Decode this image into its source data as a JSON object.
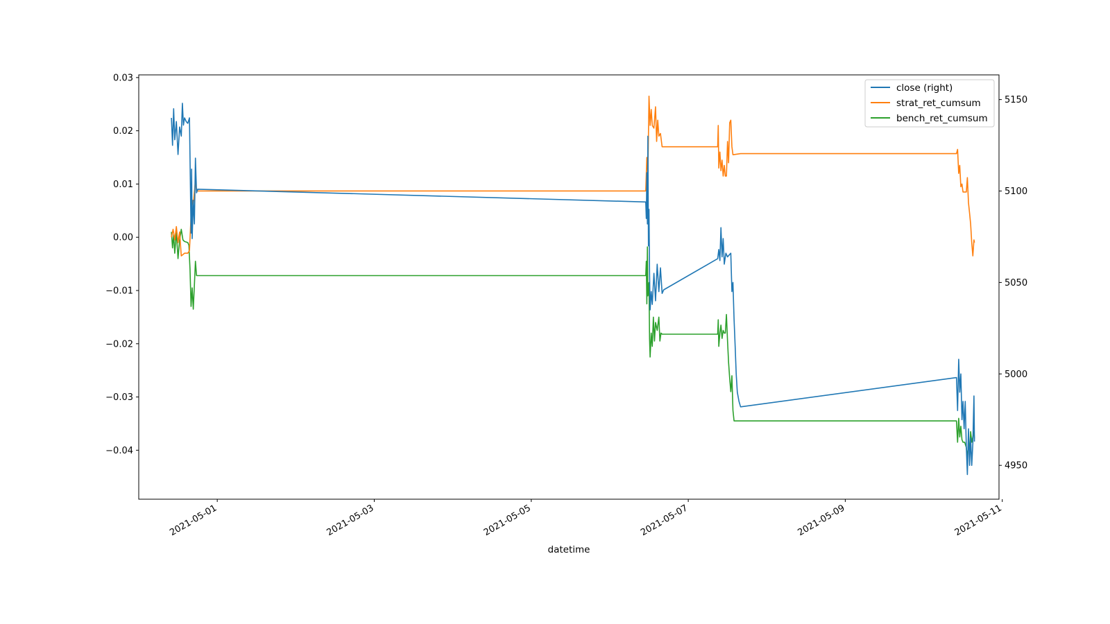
{
  "chart_data": {
    "type": "line",
    "xlabel": "datetime",
    "x_ticks": [
      "2021-05-01",
      "2021-05-03",
      "2021-05-05",
      "2021-05-07",
      "2021-05-09",
      "2021-05-11"
    ],
    "x_range": [
      "2021-04-30T00:00",
      "2021-05-10T23:00"
    ],
    "y_left": {
      "ticks": [
        "0.03",
        "0.02",
        "0.01",
        "0.00",
        "−0.01",
        "−0.02",
        "−0.03",
        "−0.04"
      ],
      "range": [
        -0.0492,
        0.0305
      ]
    },
    "y_right": {
      "ticks": [
        "5150",
        "5100",
        "5050",
        "5000",
        "4950"
      ],
      "range": [
        4931.5,
        5163.5
      ]
    },
    "grid": false,
    "legend_position": "top-right",
    "series": [
      {
        "name": "close (right)",
        "axis": "right",
        "color": "#1f77b4",
        "points": [
          [
            "2021-04-30T10:00",
            5140
          ],
          [
            "2021-04-30T10:20",
            5125
          ],
          [
            "2021-04-30T10:40",
            5145
          ],
          [
            "2021-04-30T11:00",
            5128
          ],
          [
            "2021-04-30T11:30",
            5138
          ],
          [
            "2021-04-30T12:00",
            5120
          ],
          [
            "2021-04-30T12:30",
            5135
          ],
          [
            "2021-04-30T13:00",
            5130
          ],
          [
            "2021-04-30T13:20",
            5148
          ],
          [
            "2021-04-30T13:40",
            5136
          ],
          [
            "2021-04-30T14:00",
            5140
          ],
          [
            "2021-04-30T14:30",
            5138
          ],
          [
            "2021-04-30T15:00",
            5137
          ],
          [
            "2021-04-30T15:30",
            5140
          ],
          [
            "2021-04-30T16:00",
            5077
          ],
          [
            "2021-04-30T16:10",
            5112
          ],
          [
            "2021-04-30T16:20",
            5074
          ],
          [
            "2021-04-30T16:40",
            5095
          ],
          [
            "2021-04-30T17:00",
            5082
          ],
          [
            "2021-04-30T17:20",
            5118
          ],
          [
            "2021-04-30T17:40",
            5099
          ],
          [
            "2021-04-30T18:00",
            5101
          ],
          [
            "2021-05-06T11:00",
            5094
          ],
          [
            "2021-05-06T11:10",
            5085
          ],
          [
            "2021-05-06T11:20",
            5110
          ],
          [
            "2021-05-06T11:30",
            5082
          ],
          [
            "2021-05-06T11:40",
            5130
          ],
          [
            "2021-05-06T11:50",
            5070
          ],
          [
            "2021-05-06T12:00",
            5090
          ],
          [
            "2021-05-06T12:10",
            5055
          ],
          [
            "2021-05-06T12:20",
            5035
          ],
          [
            "2021-05-06T12:40",
            5045
          ],
          [
            "2021-05-06T13:00",
            5038
          ],
          [
            "2021-05-06T13:30",
            5055
          ],
          [
            "2021-05-06T14:00",
            5040
          ],
          [
            "2021-05-06T14:30",
            5060
          ],
          [
            "2021-05-06T15:00",
            5045
          ],
          [
            "2021-05-06T15:30",
            5058
          ],
          [
            "2021-05-06T16:00",
            5044
          ],
          [
            "2021-05-06T16:30",
            5046
          ],
          [
            "2021-05-07T09:00",
            5063
          ],
          [
            "2021-05-07T09:20",
            5068
          ],
          [
            "2021-05-07T09:40",
            5062
          ],
          [
            "2021-05-07T10:00",
            5080
          ],
          [
            "2021-05-07T10:20",
            5064
          ],
          [
            "2021-05-07T10:40",
            5074
          ],
          [
            "2021-05-07T11:00",
            5060
          ],
          [
            "2021-05-07T11:30",
            5066
          ],
          [
            "2021-05-07T12:00",
            5064
          ],
          [
            "2021-05-07T12:30",
            5065
          ],
          [
            "2021-05-07T13:00",
            5066
          ],
          [
            "2021-05-07T13:20",
            5045
          ],
          [
            "2021-05-07T13:40",
            5050
          ],
          [
            "2021-05-07T14:00",
            5030
          ],
          [
            "2021-05-07T14:20",
            5015
          ],
          [
            "2021-05-07T14:40",
            5000
          ],
          [
            "2021-05-07T15:00",
            4990
          ],
          [
            "2021-05-07T15:30",
            4985
          ],
          [
            "2021-05-07T16:00",
            4982
          ],
          [
            "2021-05-10T10:00",
            4998
          ],
          [
            "2021-05-10T10:20",
            4980
          ],
          [
            "2021-05-10T10:40",
            5008
          ],
          [
            "2021-05-10T11:00",
            4990
          ],
          [
            "2021-05-10T11:20",
            5000
          ],
          [
            "2021-05-10T11:40",
            4975
          ],
          [
            "2021-05-10T12:00",
            4985
          ],
          [
            "2021-05-10T12:20",
            4970
          ],
          [
            "2021-05-10T12:40",
            4985
          ],
          [
            "2021-05-10T13:00",
            4960
          ],
          [
            "2021-05-10T13:20",
            4945
          ],
          [
            "2021-05-10T13:40",
            4970
          ],
          [
            "2021-05-10T14:00",
            4950
          ],
          [
            "2021-05-10T14:20",
            4965
          ],
          [
            "2021-05-10T14:40",
            4950
          ],
          [
            "2021-05-10T15:00",
            4962
          ],
          [
            "2021-05-10T15:20",
            4988
          ],
          [
            "2021-05-10T15:30",
            4963
          ]
        ]
      },
      {
        "name": "strat_ret_cumsum",
        "axis": "left",
        "color": "#ff7f0e",
        "points": [
          [
            "2021-04-30T10:00",
            0.0
          ],
          [
            "2021-04-30T10:30",
            0.0015
          ],
          [
            "2021-04-30T11:00",
            -0.0005
          ],
          [
            "2021-04-30T11:30",
            0.002
          ],
          [
            "2021-04-30T12:00",
            -0.001
          ],
          [
            "2021-04-30T12:30",
            0.001
          ],
          [
            "2021-04-30T13:00",
            -0.0035
          ],
          [
            "2021-04-30T14:00",
            -0.003
          ],
          [
            "2021-04-30T15:00",
            -0.003
          ],
          [
            "2021-04-30T15:30",
            -0.0025
          ],
          [
            "2021-04-30T16:00",
            0.004
          ],
          [
            "2021-04-30T16:20",
            0.007
          ],
          [
            "2021-04-30T16:40",
            0.006
          ],
          [
            "2021-04-30T17:00",
            0.0085
          ],
          [
            "2021-04-30T17:20",
            0.0105
          ],
          [
            "2021-04-30T17:40",
            0.0087
          ],
          [
            "2021-04-30T18:00",
            0.0087
          ],
          [
            "2021-05-06T11:00",
            0.0087
          ],
          [
            "2021-05-06T11:20",
            0.015
          ],
          [
            "2021-05-06T11:40",
            0.012
          ],
          [
            "2021-05-06T12:00",
            0.0265
          ],
          [
            "2021-05-06T12:20",
            0.021
          ],
          [
            "2021-05-06T12:40",
            0.024
          ],
          [
            "2021-05-06T13:00",
            0.021
          ],
          [
            "2021-05-06T13:30",
            0.0205
          ],
          [
            "2021-05-06T14:00",
            0.0245
          ],
          [
            "2021-05-06T14:20",
            0.018
          ],
          [
            "2021-05-06T14:40",
            0.022
          ],
          [
            "2021-05-06T15:00",
            0.019
          ],
          [
            "2021-05-06T15:30",
            0.0195
          ],
          [
            "2021-05-06T16:00",
            0.017
          ],
          [
            "2021-05-07T09:00",
            0.017
          ],
          [
            "2021-05-07T09:10",
            0.021
          ],
          [
            "2021-05-07T09:20",
            0.013
          ],
          [
            "2021-05-07T09:40",
            0.016
          ],
          [
            "2021-05-07T10:00",
            0.0125
          ],
          [
            "2021-05-07T10:20",
            0.0145
          ],
          [
            "2021-05-07T10:40",
            0.0115
          ],
          [
            "2021-05-07T11:00",
            0.0135
          ],
          [
            "2021-05-07T11:20",
            0.0115
          ],
          [
            "2021-05-07T11:40",
            0.0115
          ],
          [
            "2021-05-07T12:00",
            0.018
          ],
          [
            "2021-05-07T12:20",
            0.014
          ],
          [
            "2021-05-07T12:40",
            0.0215
          ],
          [
            "2021-05-07T13:00",
            0.022
          ],
          [
            "2021-05-07T13:20",
            0.017
          ],
          [
            "2021-05-07T13:40",
            0.0155
          ],
          [
            "2021-05-07T16:00",
            0.0157
          ],
          [
            "2021-05-10T10:00",
            0.0157
          ],
          [
            "2021-05-10T10:20",
            0.0165
          ],
          [
            "2021-05-10T10:40",
            0.012
          ],
          [
            "2021-05-10T11:00",
            0.0135
          ],
          [
            "2021-05-10T11:20",
            0.0095
          ],
          [
            "2021-05-10T11:40",
            0.01
          ],
          [
            "2021-05-10T12:00",
            0.0085
          ],
          [
            "2021-05-10T12:30",
            0.0085
          ],
          [
            "2021-05-10T13:00",
            0.0085
          ],
          [
            "2021-05-10T13:20",
            0.0112
          ],
          [
            "2021-05-10T13:40",
            0.0065
          ],
          [
            "2021-05-10T14:00",
            0.0045
          ],
          [
            "2021-05-10T14:20",
            0.0025
          ],
          [
            "2021-05-10T14:40",
            -0.001
          ],
          [
            "2021-05-10T15:00",
            -0.0035
          ],
          [
            "2021-05-10T15:20",
            -0.0005
          ],
          [
            "2021-05-10T15:30",
            -0.001
          ]
        ]
      },
      {
        "name": "bench_ret_cumsum",
        "axis": "left",
        "color": "#2ca02c",
        "points": [
          [
            "2021-04-30T10:00",
            0.001
          ],
          [
            "2021-04-30T10:20",
            -0.002
          ],
          [
            "2021-04-30T10:40",
            0.0005
          ],
          [
            "2021-04-30T11:00",
            -0.003
          ],
          [
            "2021-04-30T11:30",
            0.001
          ],
          [
            "2021-04-30T12:00",
            -0.004
          ],
          [
            "2021-04-30T12:30",
            -0.0005
          ],
          [
            "2021-04-30T13:00",
            0.0015
          ],
          [
            "2021-04-30T13:30",
            -0.0005
          ],
          [
            "2021-04-30T14:00",
            -0.0008
          ],
          [
            "2021-04-30T15:00",
            -0.001
          ],
          [
            "2021-04-30T15:20",
            -0.0015
          ],
          [
            "2021-04-30T15:40",
            -0.006
          ],
          [
            "2021-04-30T16:00",
            -0.013
          ],
          [
            "2021-04-30T16:20",
            -0.0095
          ],
          [
            "2021-04-30T16:40",
            -0.0135
          ],
          [
            "2021-04-30T17:00",
            -0.009
          ],
          [
            "2021-04-30T17:20",
            -0.0045
          ],
          [
            "2021-04-30T17:40",
            -0.0072
          ],
          [
            "2021-04-30T18:00",
            -0.0072
          ],
          [
            "2021-05-06T11:00",
            -0.0072
          ],
          [
            "2021-05-06T11:10",
            -0.0045
          ],
          [
            "2021-05-06T11:20",
            -0.0125
          ],
          [
            "2021-05-06T11:30",
            -0.0018
          ],
          [
            "2021-05-06T11:40",
            -0.011
          ],
          [
            "2021-05-06T12:00",
            -0.0085
          ],
          [
            "2021-05-06T12:10",
            -0.019
          ],
          [
            "2021-05-06T12:20",
            -0.0225
          ],
          [
            "2021-05-06T12:40",
            -0.018
          ],
          [
            "2021-05-06T13:00",
            -0.0205
          ],
          [
            "2021-05-06T13:20",
            -0.015
          ],
          [
            "2021-05-06T13:40",
            -0.0195
          ],
          [
            "2021-05-06T14:00",
            -0.016
          ],
          [
            "2021-05-06T14:30",
            -0.0175
          ],
          [
            "2021-05-06T15:00",
            -0.015
          ],
          [
            "2021-05-06T15:20",
            -0.0195
          ],
          [
            "2021-05-06T15:40",
            -0.018
          ],
          [
            "2021-05-06T16:00",
            -0.0182
          ],
          [
            "2021-05-07T09:00",
            -0.0182
          ],
          [
            "2021-05-07T09:10",
            -0.0155
          ],
          [
            "2021-05-07T09:20",
            -0.0205
          ],
          [
            "2021-05-07T09:40",
            -0.018
          ],
          [
            "2021-05-07T10:00",
            -0.0165
          ],
          [
            "2021-05-07T10:20",
            -0.019
          ],
          [
            "2021-05-07T10:40",
            -0.0175
          ],
          [
            "2021-05-07T11:00",
            -0.018
          ],
          [
            "2021-05-07T11:20",
            -0.018
          ],
          [
            "2021-05-07T11:40",
            -0.0145
          ],
          [
            "2021-05-07T12:00",
            -0.0195
          ],
          [
            "2021-05-07T12:20",
            -0.0235
          ],
          [
            "2021-05-07T12:40",
            -0.0265
          ],
          [
            "2021-05-07T13:00",
            -0.029
          ],
          [
            "2021-05-07T13:20",
            -0.026
          ],
          [
            "2021-05-07T13:40",
            -0.0325
          ],
          [
            "2021-05-07T14:00",
            -0.0345
          ],
          [
            "2021-05-07T16:00",
            -0.0345
          ],
          [
            "2021-05-10T10:00",
            -0.0345
          ],
          [
            "2021-05-10T10:20",
            -0.0385
          ],
          [
            "2021-05-10T10:40",
            -0.034
          ],
          [
            "2021-05-10T11:00",
            -0.0375
          ],
          [
            "2021-05-10T11:20",
            -0.0355
          ],
          [
            "2021-05-10T11:40",
            -0.038
          ],
          [
            "2021-05-10T12:00",
            -0.0385
          ],
          [
            "2021-05-10T12:30",
            -0.0385
          ],
          [
            "2021-05-10T13:00",
            -0.0395
          ],
          [
            "2021-05-10T13:20",
            -0.0415
          ],
          [
            "2021-05-10T13:40",
            -0.0385
          ],
          [
            "2021-05-10T14:00",
            -0.0405
          ],
          [
            "2021-05-10T14:20",
            -0.0365
          ],
          [
            "2021-05-10T14:40",
            -0.0385
          ],
          [
            "2021-05-10T15:00",
            -0.0375
          ],
          [
            "2021-05-10T15:20",
            -0.0365
          ],
          [
            "2021-05-10T15:30",
            -0.0378
          ]
        ]
      }
    ]
  }
}
